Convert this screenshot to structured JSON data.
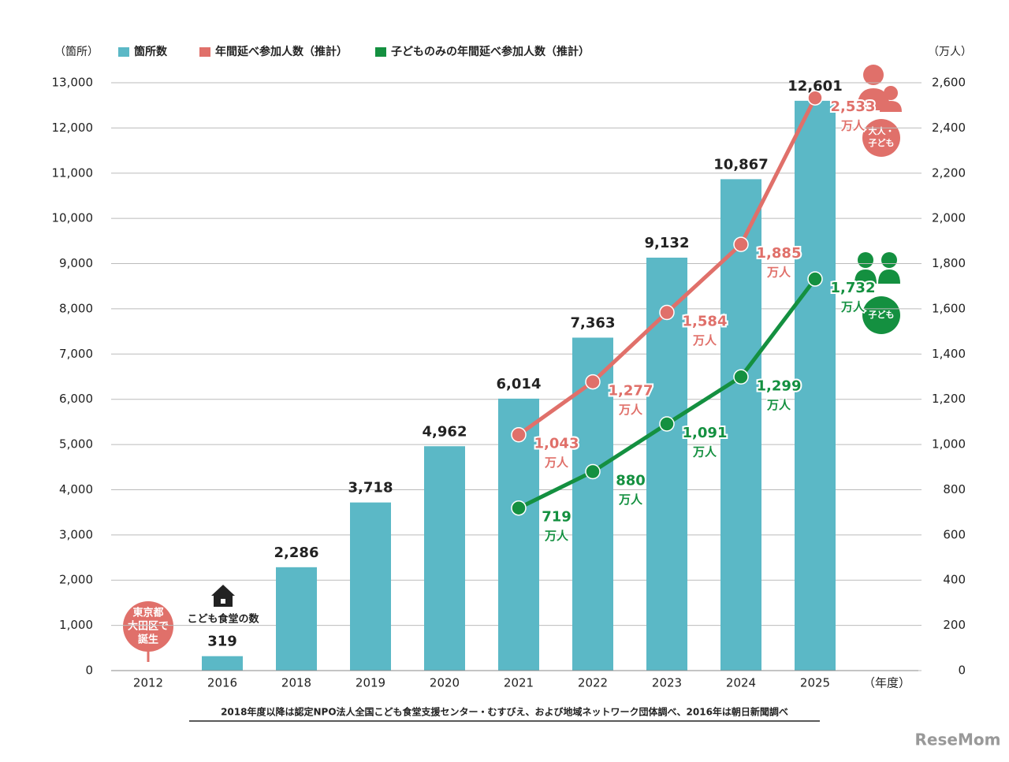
{
  "chart_data": {
    "type": "bar",
    "categories": [
      "2012",
      "2016",
      "2018",
      "2019",
      "2020",
      "2021",
      "2022",
      "2023",
      "2024",
      "2025"
    ],
    "series": [
      {
        "name": "箇所数",
        "type": "bar",
        "color": "#5bb8c6",
        "values": [
          null,
          319,
          2286,
          3718,
          4962,
          6014,
          7363,
          9132,
          10867,
          12601
        ],
        "value_labels": [
          null,
          "319",
          "2,286",
          "3,718",
          "4,962",
          "6,014",
          "7,363",
          "9,132",
          "10,867",
          "12,601"
        ]
      },
      {
        "name": "年間延べ参加人数（推計）",
        "type": "line",
        "axis": "y2",
        "color": "#e0706a",
        "values": [
          null,
          null,
          null,
          null,
          null,
          1043,
          1277,
          1584,
          1885,
          2533
        ],
        "value_labels": [
          null,
          null,
          null,
          null,
          null,
          "1,043",
          "1,277",
          "1,584",
          "1,885",
          "2,533"
        ]
      },
      {
        "name": "子どものみの年間延べ参加人数（推計）",
        "type": "line",
        "axis": "y2",
        "color": "#149040",
        "values": [
          null,
          null,
          null,
          null,
          null,
          719,
          880,
          1091,
          1299,
          1732
        ],
        "value_labels": [
          null,
          null,
          null,
          null,
          null,
          "719",
          "880",
          "1,091",
          "1,299",
          "1,732"
        ]
      }
    ],
    "line_value_unit": "万人",
    "y_label": "（箇所）",
    "y2_label": "（万人）",
    "x_label": "（年度）",
    "ylim": [
      0,
      13000
    ],
    "yticks": [
      0,
      {
        "value": 1000,
        "label": "1,000"
      },
      {
        "value": 2000,
        "label": "2,000"
      },
      {
        "value": 3000,
        "label": "3,000"
      },
      {
        "value": 4000,
        "label": "4,000"
      },
      {
        "value": 5000,
        "label": "5,000"
      },
      {
        "value": 6000,
        "label": "6,000"
      },
      {
        "value": 7000,
        "label": "7,000"
      },
      {
        "value": 8000,
        "label": "8,000"
      },
      {
        "value": 9000,
        "label": "9,000"
      },
      {
        "value": 10000,
        "label": "10,000"
      },
      {
        "value": 11000,
        "label": "11,000"
      },
      {
        "value": 12000,
        "label": "12,000"
      },
      {
        "value": 13000,
        "label": "13,000"
      }
    ],
    "y2lim": [
      0,
      2600
    ],
    "y2ticks": [
      0,
      200,
      400,
      600,
      800,
      {
        "value": 1000,
        "label": "1,000"
      },
      {
        "value": 1200,
        "label": "1,200"
      },
      {
        "value": 1400,
        "label": "1,400"
      },
      {
        "value": 1600,
        "label": "1,600"
      },
      {
        "value": 1800,
        "label": "1,800"
      },
      {
        "value": 2000,
        "label": "2,000"
      },
      {
        "value": 2200,
        "label": "2,200"
      },
      {
        "value": 2400,
        "label": "2,400"
      },
      {
        "value": 2600,
        "label": "2,600"
      }
    ],
    "grid": true,
    "legend": "top",
    "annotations": {
      "origin": [
        "東京都",
        "大田区で",
        "誕生"
      ],
      "count_note": "こども食堂の数",
      "badge_all": [
        "大人・",
        "子ども"
      ],
      "badge_children": "子ども"
    },
    "source": "2018年度以降は認定NPO法人全国こども食堂支援センター・むすびえ、および地域ネットワーク団体調べ、2016年は朝日新聞調べ",
    "watermark": "ReseMom"
  }
}
